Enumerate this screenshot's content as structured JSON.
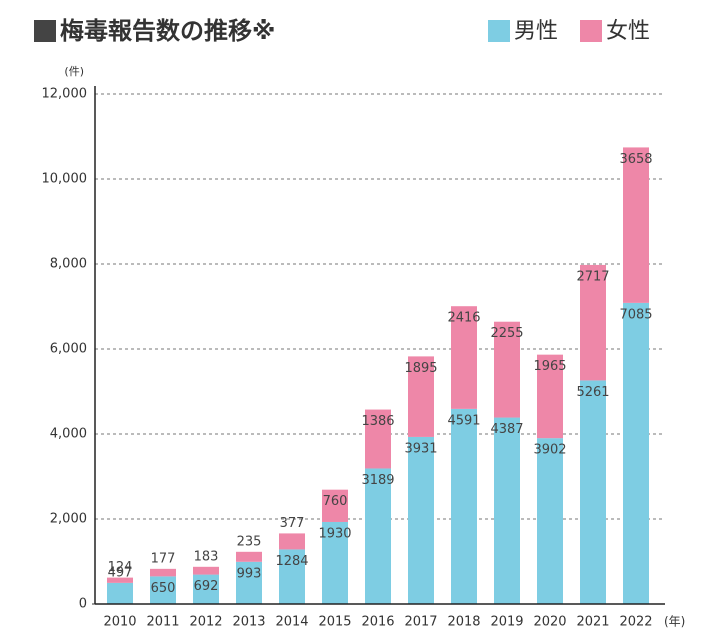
{
  "chart_data": {
    "type": "stacked_bar",
    "title": "梅毒報告数の推移※",
    "y_unit": "(件)",
    "x_unit": "(年)",
    "categories": [
      "2010",
      "2011",
      "2012",
      "2013",
      "2014",
      "2015",
      "2016",
      "2017",
      "2018",
      "2019",
      "2020",
      "2021",
      "2022"
    ],
    "series": [
      {
        "name": "男性",
        "color": "#7ecde3",
        "values": [
          497,
          650,
          692,
          993,
          1284,
          1930,
          3189,
          3931,
          4591,
          4387,
          3902,
          5261,
          7085
        ]
      },
      {
        "name": "女性",
        "color": "#ee87a8",
        "values": [
          124,
          177,
          183,
          235,
          377,
          760,
          1386,
          1895,
          2416,
          2255,
          1965,
          2717,
          3658
        ]
      }
    ],
    "ylim": [
      0,
      12000
    ],
    "yticks": [
      0,
      {
        "value": 2000,
        "label": "2,000"
      },
      {
        "value": 4000,
        "label": "4,000"
      },
      {
        "value": 6000,
        "label": "6,000"
      },
      {
        "value": 8000,
        "label": "8,000"
      },
      {
        "value": 10000,
        "label": "10,000"
      },
      {
        "value": 12000,
        "label": "12,000"
      }
    ],
    "grid": true,
    "legend": "top-right"
  }
}
